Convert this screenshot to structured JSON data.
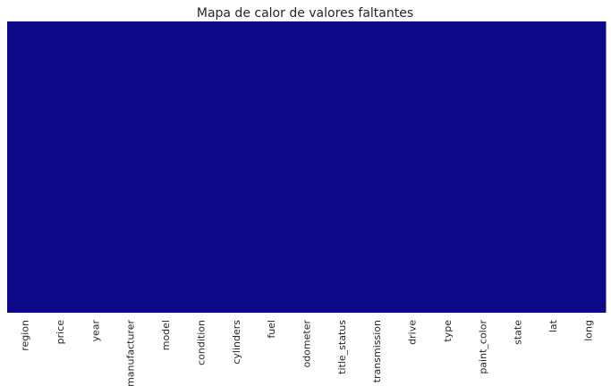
{
  "chart_data": {
    "type": "heatmap",
    "title": "Mapa de calor de valores faltantes",
    "xlabel": "",
    "ylabel": "",
    "columns": [
      "region",
      "price",
      "year",
      "manufacturer",
      "model",
      "condition",
      "cylinders",
      "fuel",
      "odometer",
      "title_status",
      "transmission",
      "drive",
      "type",
      "paint_color",
      "state",
      "lat",
      "long"
    ],
    "missing_fraction": [
      0,
      0,
      0,
      0,
      0,
      0,
      0,
      0,
      0,
      0,
      0,
      0,
      0,
      0,
      0,
      0,
      0
    ],
    "colorbar": false,
    "grid": false,
    "colors": {
      "not_missing": "#0d0887",
      "missing": "#f0f921"
    }
  }
}
